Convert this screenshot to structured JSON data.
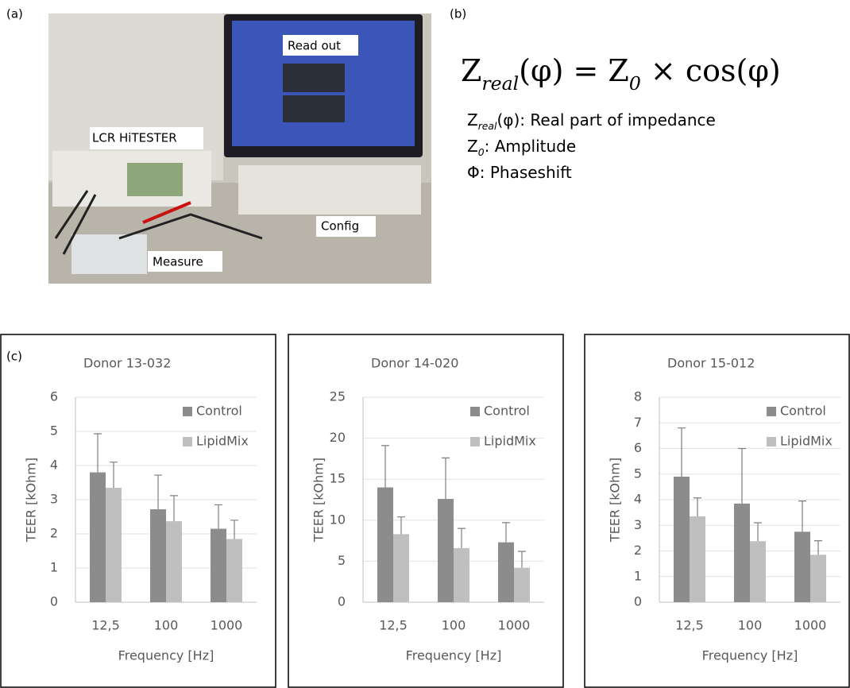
{
  "a": {
    "label": "(a)",
    "callouts": [
      "Read out",
      "LCR HiTESTER",
      "Config",
      "Measure"
    ]
  },
  "b": {
    "label": "(b)",
    "formula": [
      {
        "text": "Z"
      },
      {
        "sub": "real"
      },
      {
        "text": "(φ) = Z"
      },
      {
        "sub": "0"
      },
      {
        "text": " × cos(φ)"
      }
    ],
    "definitions": [
      [
        {
          "text": "Z"
        },
        {
          "sub": "real"
        },
        {
          "text": "(φ): Real part of impedance"
        }
      ],
      [
        {
          "text": "Z"
        },
        {
          "sub": "0"
        },
        {
          "text": ": Amplitude"
        }
      ],
      [
        {
          "text": "Φ: Phaseshift"
        }
      ]
    ]
  },
  "c_label": "(c)",
  "chart_data": [
    {
      "type": "bar",
      "title": "Donor 13-032",
      "x_label": "Frequency [Hz]",
      "y_label": "TEER [kOhm]",
      "categories": [
        "12,5",
        "100",
        "1000"
      ],
      "ylim": [
        0,
        6
      ],
      "yticks": [
        0,
        1,
        2,
        3,
        4,
        5,
        6
      ],
      "grid": true,
      "series": [
        {
          "name": "Control",
          "color": "#8c8c8c",
          "values": [
            3.8,
            2.72,
            2.15
          ],
          "errors": [
            1.13,
            1.0,
            0.7
          ]
        },
        {
          "name": "LipidMix",
          "color": "#bfbfbf",
          "values": [
            3.35,
            2.37,
            1.85
          ],
          "errors": [
            0.75,
            0.75,
            0.55
          ]
        }
      ]
    },
    {
      "type": "bar",
      "title": "Donor 14-020",
      "x_label": "Frequency [Hz]",
      "y_label": "TEER [kOhm]",
      "categories": [
        "12,5",
        "100",
        "1000"
      ],
      "ylim": [
        0,
        25
      ],
      "yticks": [
        0,
        5,
        10,
        15,
        20,
        25
      ],
      "grid": true,
      "series": [
        {
          "name": "Control",
          "color": "#8c8c8c",
          "values": [
            14,
            12.6,
            7.3
          ],
          "errors": [
            5.1,
            5.0,
            2.4
          ]
        },
        {
          "name": "LipidMix",
          "color": "#bfbfbf",
          "values": [
            8.3,
            6.6,
            4.2
          ],
          "errors": [
            2.1,
            2.4,
            2.0
          ]
        }
      ]
    },
    {
      "type": "bar",
      "title": "Donor 15-012",
      "x_label": "Frequency [Hz]",
      "y_label": "TEER [kOhm]",
      "categories": [
        "12,5",
        "100",
        "1000"
      ],
      "ylim": [
        0,
        8
      ],
      "yticks": [
        0,
        1,
        2,
        3,
        4,
        5,
        6,
        7,
        8
      ],
      "grid": true,
      "series": [
        {
          "name": "Control",
          "color": "#8c8c8c",
          "values": [
            4.9,
            3.85,
            2.75
          ],
          "errors": [
            1.9,
            2.15,
            1.2
          ]
        },
        {
          "name": "LipidMix",
          "color": "#bfbfbf",
          "values": [
            3.35,
            2.38,
            1.85
          ],
          "errors": [
            0.72,
            0.72,
            0.55
          ]
        }
      ]
    }
  ]
}
